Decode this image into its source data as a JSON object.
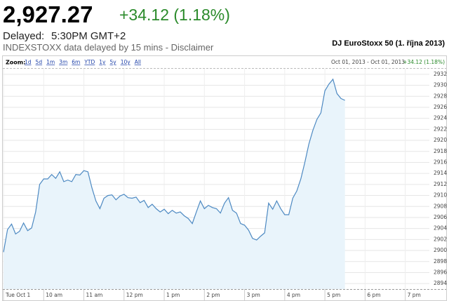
{
  "header": {
    "price": "2,927.27",
    "change": "+34.12 (1.18%)",
    "delayed_label": "Delayed:",
    "delayed_time": "5:30PM GMT+2",
    "disclaimer": "INDEXSTOXX data delayed by 15 mins - Disclaimer",
    "chart_name": "DJ EuroStoxx 50 (1. října 2013)"
  },
  "toolbar": {
    "zoom_label": "Zoom:",
    "zoom_options": [
      "1d",
      "5d",
      "1m",
      "3m",
      "6m",
      "YTD",
      "1y",
      "5y",
      "10y",
      "All"
    ],
    "date_range": "Oct 01, 2013 - Oct 01, 2013",
    "change": "+34.12 (1.18%)"
  },
  "chart_data": {
    "type": "area",
    "x": [
      9.0,
      9.1,
      9.2,
      9.3,
      9.4,
      9.5,
      9.6,
      9.7,
      9.8,
      9.9,
      10.0,
      10.1,
      10.2,
      10.3,
      10.4,
      10.5,
      10.6,
      10.7,
      10.8,
      10.9,
      11.0,
      11.1,
      11.2,
      11.3,
      11.4,
      11.5,
      11.6,
      11.7,
      11.8,
      11.9,
      12.0,
      12.1,
      12.2,
      12.3,
      12.4,
      12.5,
      12.6,
      12.7,
      12.8,
      12.9,
      13.0,
      13.1,
      13.2,
      13.3,
      13.4,
      13.5,
      13.6,
      13.7,
      13.8,
      13.9,
      14.0,
      14.1,
      14.2,
      14.3,
      14.4,
      14.5,
      14.6,
      14.7,
      14.8,
      14.9,
      15.0,
      15.1,
      15.2,
      15.3,
      15.4,
      15.5,
      15.6,
      15.7,
      15.8,
      15.9,
      16.0,
      16.1,
      16.2,
      16.3,
      16.4,
      16.5,
      16.6,
      16.7,
      16.8,
      16.9,
      17.0,
      17.1,
      17.2,
      17.3,
      17.4,
      17.5
    ],
    "series": [
      {
        "color": "#4d89c2",
        "fill": "#e9f4fb",
        "values": [
          2899.7,
          2903.8,
          2904.8,
          2903,
          2903.5,
          2905,
          2903.6,
          2904.1,
          2907,
          2912,
          2913,
          2913,
          2913.8,
          2913.1,
          2914.3,
          2912.5,
          2912.8,
          2912.5,
          2913.8,
          2913.7,
          2914.5,
          2914.3,
          2911.4,
          2909,
          2907.6,
          2909.5,
          2910,
          2910.1,
          2909.2,
          2909.9,
          2910.2,
          2909.6,
          2909.5,
          2909.7,
          2908.7,
          2909.1,
          2907.8,
          2908.4,
          2907.6,
          2907,
          2907.5,
          2906.7,
          2907.3,
          2906.8,
          2907,
          2906.3,
          2905.8,
          2904.9,
          2907,
          2909,
          2907.6,
          2908.2,
          2907.8,
          2907.6,
          2906.8,
          2908.6,
          2909.6,
          2907.3,
          2906.8,
          2904.9,
          2904.6,
          2903.7,
          2902.2,
          2901.9,
          2902.6,
          2903.2,
          2908.6,
          2907.5,
          2909,
          2907.6,
          2906.5,
          2906.5,
          2909.5,
          2910.8,
          2913,
          2916,
          2919.3,
          2921.8,
          2923.8,
          2925,
          2929,
          2930.2,
          2931.1,
          2928.5,
          2927.6,
          2927.27
        ]
      }
    ],
    "xlim": [
      9,
      19.6
    ],
    "xticks": [
      {
        "value": 9,
        "label": "Tue Oct 1"
      },
      {
        "value": 10,
        "label": "10 am"
      },
      {
        "value": 11,
        "label": "11 am"
      },
      {
        "value": 12,
        "label": "12 pm"
      },
      {
        "value": 13,
        "label": "1 pm"
      },
      {
        "value": 14,
        "label": "2 pm"
      },
      {
        "value": 15,
        "label": "3 pm"
      },
      {
        "value": 16,
        "label": "4 pm"
      },
      {
        "value": 17,
        "label": "5 pm"
      },
      {
        "value": 18,
        "label": "6 pm"
      },
      {
        "value": 19,
        "label": "7 pm"
      }
    ],
    "ylim": [
      2893,
      2933
    ],
    "yticks": [
      2894,
      2896,
      2898,
      2900,
      2902,
      2904,
      2906,
      2908,
      2910,
      2912,
      2914,
      2916,
      2918,
      2920,
      2922,
      2924,
      2926,
      2928,
      2930,
      2932
    ],
    "grid": true
  }
}
